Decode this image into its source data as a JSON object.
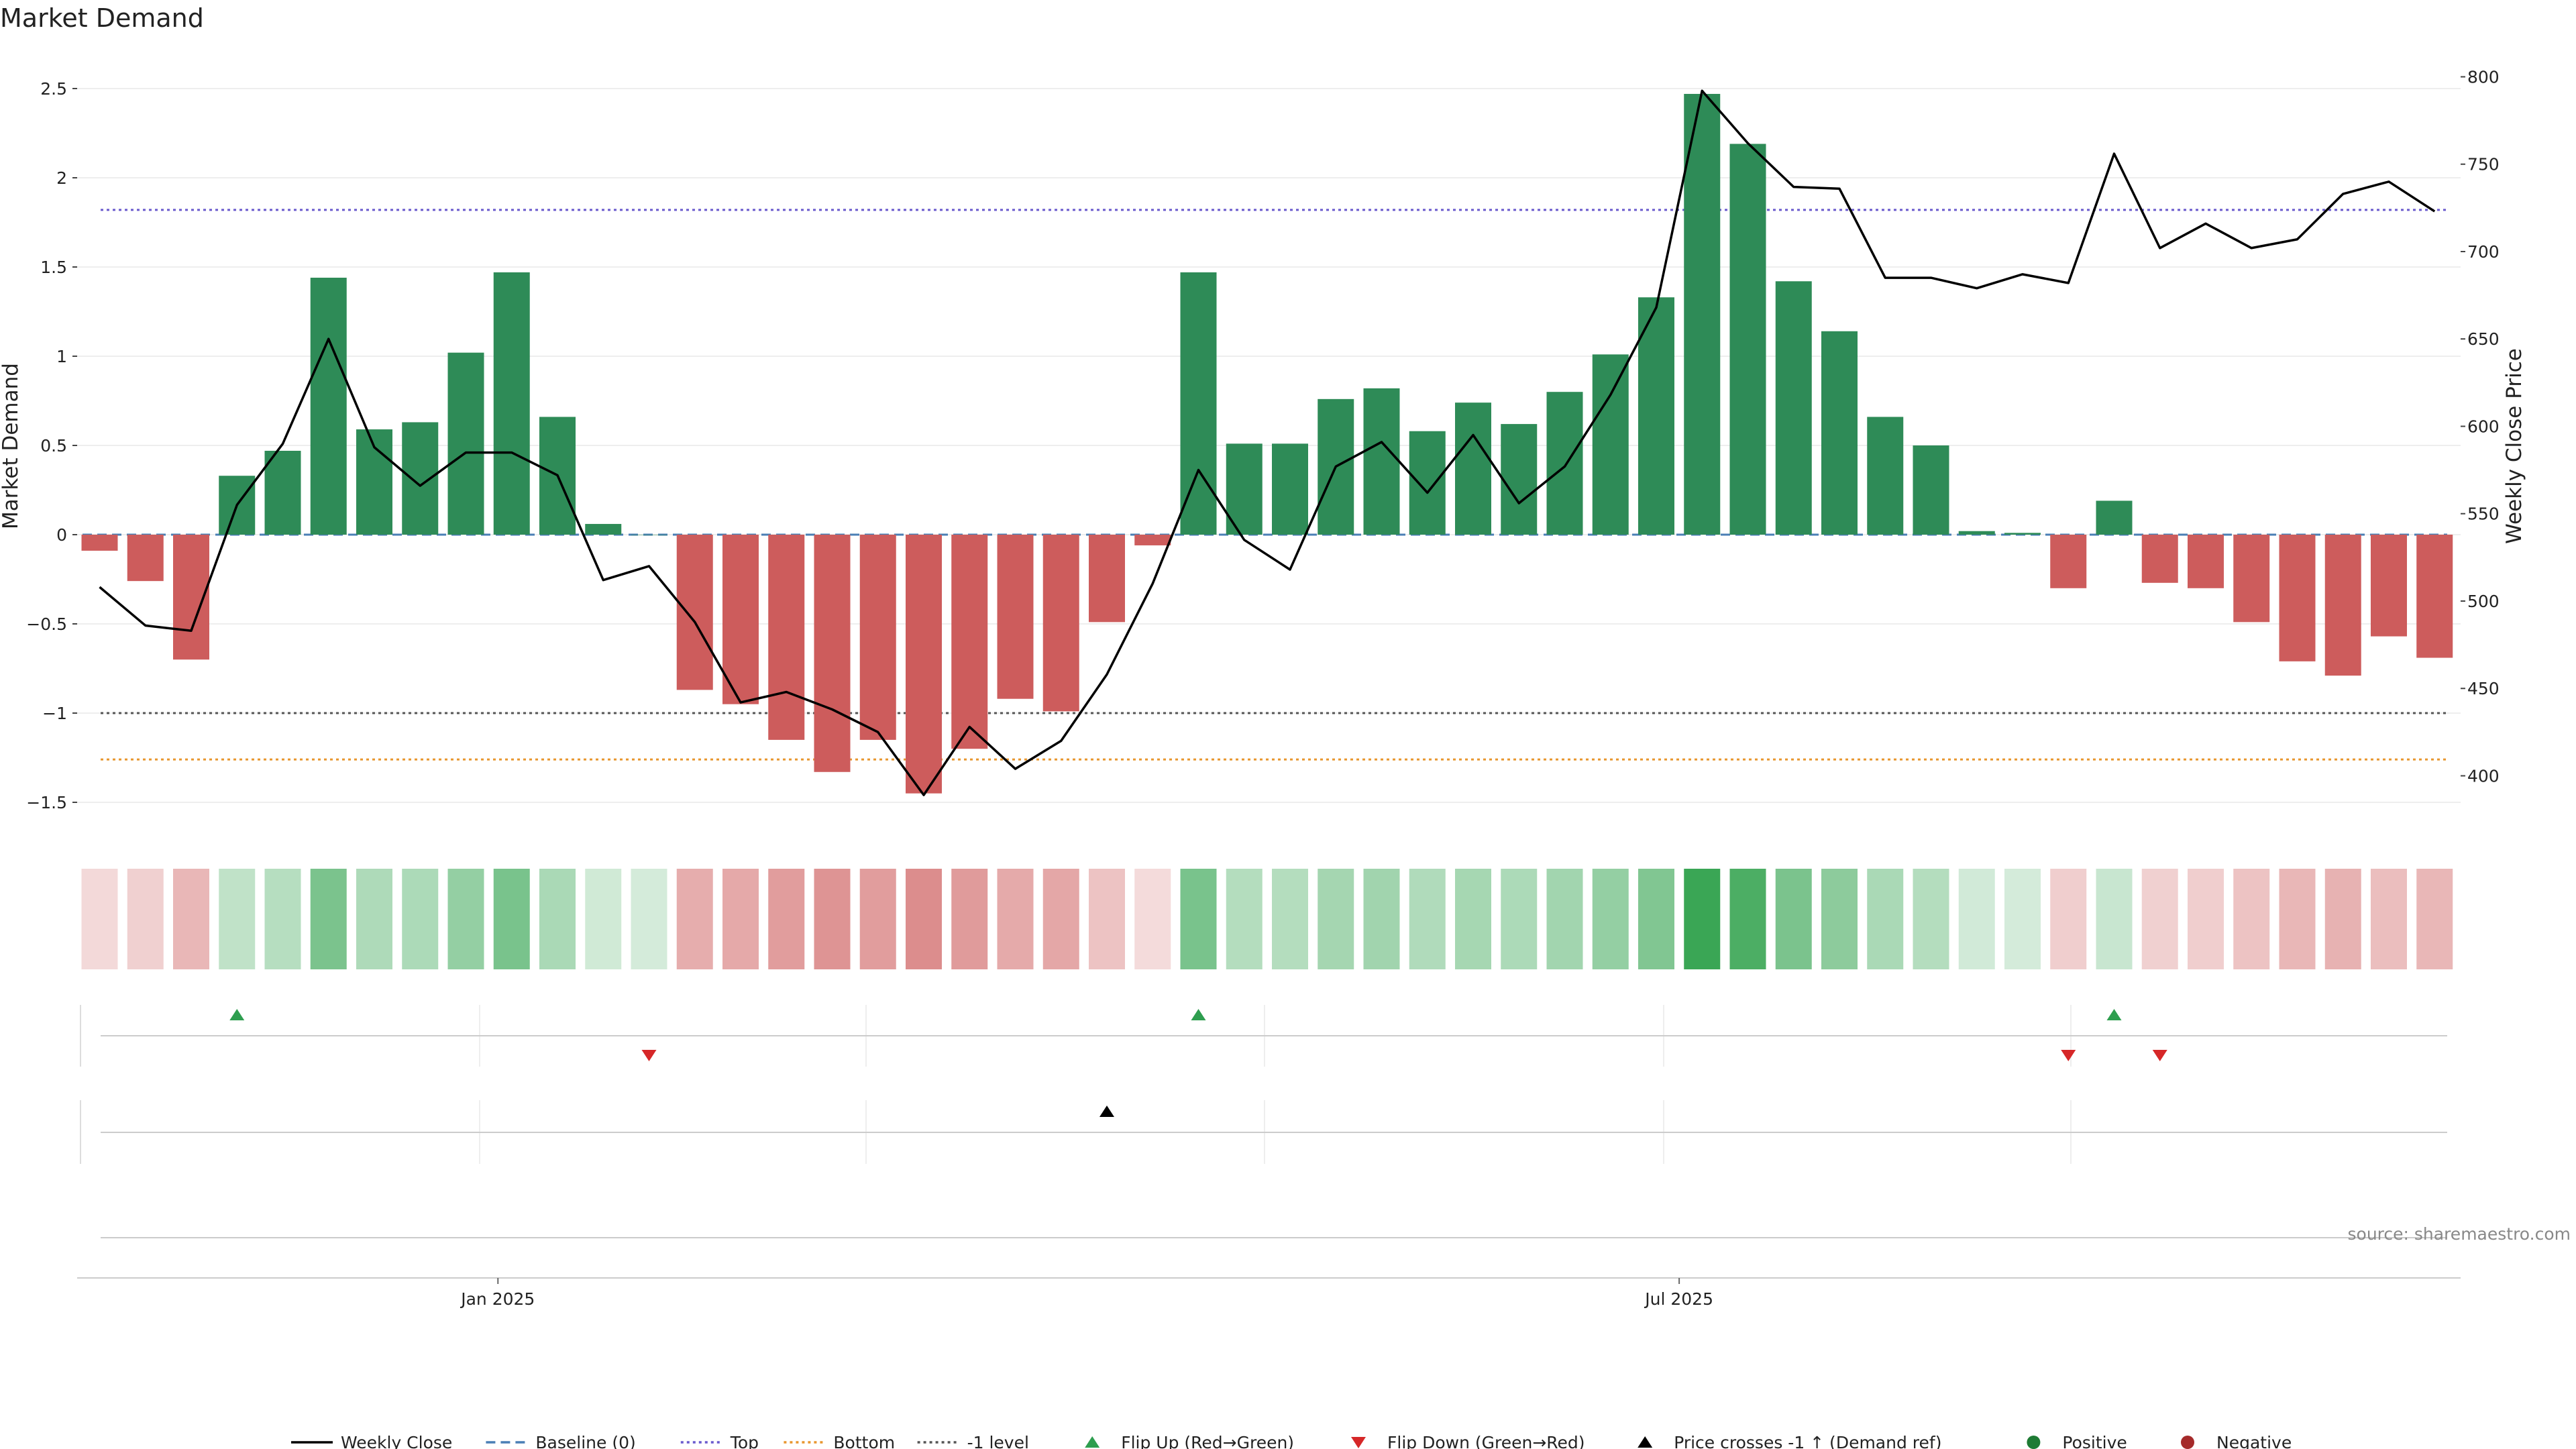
{
  "chart_data": {
    "type": "bar",
    "title": "Market Demand",
    "ylabel": "Market Demand",
    "y2label": "Weekly Close Price",
    "ylim": [
      -1.7,
      2.65
    ],
    "y2lim": [
      375,
      803
    ],
    "yticks": [
      "2.5",
      "2",
      "1.5",
      "1",
      "0.5",
      "0",
      "−0.5",
      "−1",
      "−1.5"
    ],
    "ytick_values": [
      2.5,
      2,
      1.5,
      1,
      0.5,
      0,
      -0.5,
      -1,
      -1.5
    ],
    "y2ticks": [
      "800",
      "750",
      "700",
      "650",
      "600",
      "550",
      "500",
      "450",
      "400"
    ],
    "y2tick_values": [
      800,
      750,
      700,
      650,
      600,
      550,
      500,
      450,
      400
    ],
    "xticks": [
      {
        "label": "Jan 2025",
        "week": 8.7
      },
      {
        "label": "Jul 2025",
        "week": 34.5
      }
    ],
    "reference_lines": {
      "top": 1.82,
      "bottom": -1.26,
      "minus_one": -1.0,
      "baseline": 0
    },
    "series": [
      {
        "name": "Market Demand",
        "values": [
          -0.09,
          -0.26,
          -0.7,
          0.33,
          0.47,
          1.44,
          0.59,
          0.63,
          1.02,
          1.47,
          0.66,
          0.06,
          0,
          -0.87,
          -0.95,
          -1.15,
          -1.33,
          -1.15,
          -1.45,
          -1.2,
          -0.92,
          -0.99,
          -0.49,
          -0.06,
          1.47,
          0.51,
          0.51,
          0.76,
          0.82,
          0.58,
          0.74,
          0.62,
          0.8,
          1.01,
          1.33,
          2.47,
          2.19,
          1.42,
          1.14,
          0.66,
          0.5,
          0.02,
          0.01,
          -0.3,
          0.19,
          -0.27,
          -0.3,
          -0.49,
          -0.71,
          -0.79,
          -0.57,
          -0.69
        ]
      },
      {
        "name": "Weekly Close",
        "values": [
          508,
          486,
          483,
          555,
          590,
          650,
          588,
          566,
          585,
          585,
          572,
          512,
          520,
          488,
          442,
          448,
          438,
          425,
          389,
          428,
          404,
          420,
          458,
          510,
          575,
          535,
          518,
          577,
          591,
          562,
          595,
          556,
          577,
          618,
          668,
          792,
          762,
          737,
          736,
          685,
          685,
          679,
          687,
          682,
          756,
          702,
          716,
          702,
          707,
          733,
          740,
          723
        ]
      }
    ],
    "flip_up_weeks": [
      3,
      24,
      44
    ],
    "flip_down_weeks": [
      12,
      43,
      45
    ],
    "price_cross_weeks": [
      22
    ],
    "legend": [
      {
        "label": "Weekly Close",
        "kind": "line-solid",
        "color": "#000000"
      },
      {
        "label": "Baseline (0)",
        "kind": "line-dash",
        "color": "#4a7fb5"
      },
      {
        "label": "Top",
        "kind": "line-dot",
        "color": "#6a5acd"
      },
      {
        "label": "Bottom",
        "kind": "line-dot",
        "color": "#e8962e"
      },
      {
        "label": "-1 level",
        "kind": "line-dot",
        "color": "#555555"
      },
      {
        "label": "Flip Up (Red→Green)",
        "kind": "tri-up",
        "color": "#2e9e4f"
      },
      {
        "label": "Flip Down (Green→Red)",
        "kind": "tri-down",
        "color": "#d62728"
      },
      {
        "label": "Price crosses -1 ↑ (Demand ref)",
        "kind": "tri-up",
        "color": "#000000"
      },
      {
        "label": "Positive",
        "kind": "dot",
        "color": "#1e7b34"
      },
      {
        "label": "Negative",
        "kind": "dot",
        "color": "#a52a2a"
      }
    ],
    "source": "source: sharemaestro.com"
  },
  "colors": {
    "positive_bar": "#2e8b57",
    "negative_bar": "#cd5c5c",
    "price_line": "#000000",
    "flip_up": "#2e9e4f",
    "flip_down": "#d62728",
    "heat_positive": "#3aa655",
    "heat_negative": "#cd5c5c"
  }
}
